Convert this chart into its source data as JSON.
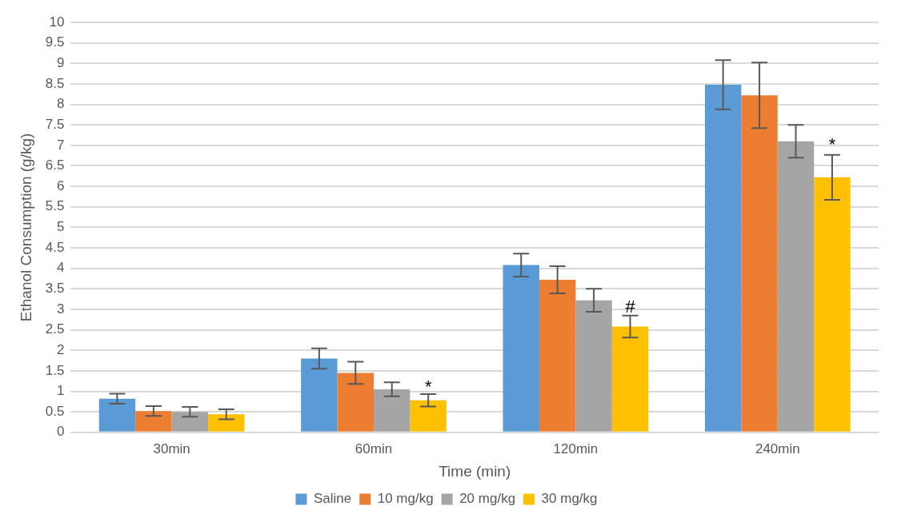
{
  "chart_data": {
    "type": "bar",
    "xlabel": "Time (min)",
    "ylabel": "Ethanol Consumption (g/kg)",
    "categories": [
      "30min",
      "60min",
      "120min",
      "240min"
    ],
    "series": [
      {
        "name": "Saline",
        "color": "#5b9bd5",
        "values": [
          0.82,
          1.8,
          4.08,
          8.48
        ],
        "errors": [
          0.12,
          0.25,
          0.28,
          0.6
        ]
      },
      {
        "name": "10 mg/kg",
        "color": "#ed7d31",
        "values": [
          0.52,
          1.45,
          3.72,
          8.22
        ],
        "errors": [
          0.12,
          0.27,
          0.33,
          0.8
        ]
      },
      {
        "name": "20 mg/kg",
        "color": "#a5a5a5",
        "values": [
          0.5,
          1.05,
          3.22,
          7.1
        ],
        "errors": [
          0.12,
          0.17,
          0.28,
          0.4
        ]
      },
      {
        "name": "30 mg/kg",
        "color": "#ffc000",
        "values": [
          0.44,
          0.78,
          2.58,
          6.22
        ],
        "errors": [
          0.12,
          0.15,
          0.27,
          0.55
        ]
      }
    ],
    "annotations": [
      {
        "text": "*",
        "x": "60min",
        "y": 1.0
      },
      {
        "text": "#",
        "x": "120min",
        "y": 2.95
      },
      {
        "text": "*",
        "x": "240min",
        "y": 6.9
      }
    ],
    "ylim": [
      0,
      10
    ],
    "yticks": [
      0,
      0.5,
      1,
      1.5,
      2,
      2.5,
      3,
      3.5,
      4,
      4.5,
      5,
      5.5,
      6,
      6.5,
      7,
      7.5,
      8,
      8.5,
      9,
      9.5,
      10
    ],
    "grid": "y",
    "legend": "bottom"
  }
}
